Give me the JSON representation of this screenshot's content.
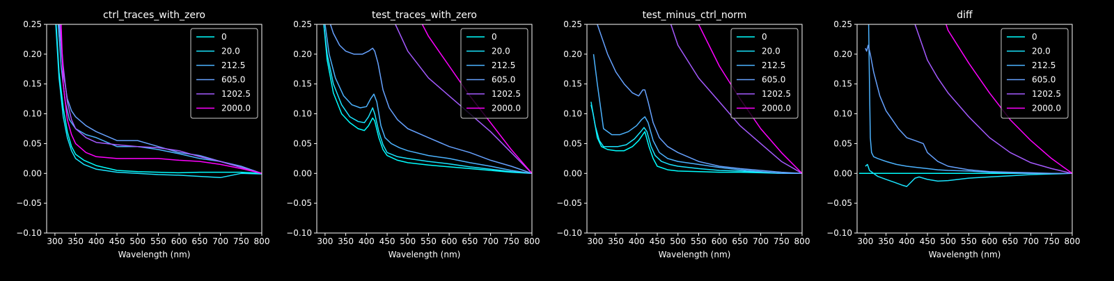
{
  "figure": {
    "background": "#000000",
    "foreground": "#ffffff"
  },
  "legend_colors": [
    "#00ffff",
    "#1ae5ff",
    "#4cb3ff",
    "#66a2ff",
    "#a55aff",
    "#ff00ff"
  ],
  "chart_data": [
    {
      "type": "line",
      "title": "ctrl_traces_with_zero",
      "xlabel": "Wavelength (nm)",
      "ylabel": "",
      "xlim": [
        280,
        800
      ],
      "ylim": [
        -0.1,
        0.25
      ],
      "xticks": [
        300,
        350,
        400,
        450,
        500,
        550,
        600,
        650,
        700,
        750,
        800
      ],
      "yticks": [
        "−0.10",
        "−0.05",
        "0.00",
        "0.05",
        "0.10",
        "0.15",
        "0.20",
        "0.25"
      ],
      "legend_position": "top-right",
      "series": [
        {
          "name": "0",
          "color": "#00ffff",
          "x": [
            303,
            310,
            320,
            330,
            340,
            350,
            370,
            400,
            450,
            500,
            550,
            600,
            650,
            700,
            750,
            800
          ],
          "y": [
            0.25,
            0.17,
            0.11,
            0.07,
            0.045,
            0.032,
            0.022,
            0.013,
            0.005,
            0.003,
            0.002,
            0.001,
            0.002,
            0.002,
            0.002,
            0.0
          ]
        },
        {
          "name": "20.0",
          "color": "#1ae5ff",
          "x": [
            302,
            310,
            320,
            330,
            340,
            350,
            370,
            400,
            450,
            500,
            550,
            600,
            650,
            700,
            750,
            800
          ],
          "y": [
            0.25,
            0.16,
            0.095,
            0.06,
            0.038,
            0.025,
            0.015,
            0.007,
            0.002,
            0.0,
            -0.002,
            -0.003,
            -0.005,
            -0.007,
            0.0,
            -0.001
          ]
        },
        {
          "name": "212.5",
          "color": "#4cb3ff",
          "x": [
            308,
            315,
            325,
            335,
            350,
            375,
            400,
            450,
            500,
            550,
            600,
            650,
            700,
            750,
            800
          ],
          "y": [
            0.25,
            0.18,
            0.12,
            0.09,
            0.075,
            0.065,
            0.06,
            0.045,
            0.045,
            0.04,
            0.033,
            0.025,
            0.02,
            0.01,
            0.0
          ]
        },
        {
          "name": "605.0",
          "color": "#66a2ff",
          "x": [
            310,
            320,
            330,
            340,
            350,
            375,
            400,
            450,
            500,
            550,
            600,
            650,
            700,
            750,
            800
          ],
          "y": [
            0.25,
            0.17,
            0.125,
            0.105,
            0.095,
            0.08,
            0.07,
            0.055,
            0.055,
            0.045,
            0.035,
            0.03,
            0.02,
            0.012,
            0.0
          ]
        },
        {
          "name": "1202.5",
          "color": "#a55aff",
          "x": [
            312,
            320,
            330,
            340,
            350,
            375,
            400,
            450,
            500,
            550,
            600,
            650,
            700,
            750,
            800
          ],
          "y": [
            0.25,
            0.18,
            0.12,
            0.09,
            0.075,
            0.06,
            0.052,
            0.048,
            0.045,
            0.043,
            0.038,
            0.028,
            0.02,
            0.01,
            0.0
          ]
        },
        {
          "name": "2000.0",
          "color": "#ff00ff",
          "x": [
            315,
            320,
            330,
            340,
            350,
            375,
            400,
            450,
            500,
            550,
            600,
            650,
            700,
            750,
            800
          ],
          "y": [
            0.25,
            0.15,
            0.09,
            0.065,
            0.05,
            0.035,
            0.028,
            0.025,
            0.025,
            0.025,
            0.022,
            0.02,
            0.015,
            0.008,
            0.0
          ]
        }
      ]
    },
    {
      "type": "line",
      "title": "test_traces_with_zero",
      "xlabel": "Wavelength (nm)",
      "ylabel": "",
      "xlim": [
        280,
        800
      ],
      "ylim": [
        -0.1,
        0.25
      ],
      "xticks": [
        300,
        350,
        400,
        450,
        500,
        550,
        600,
        650,
        700,
        750,
        800
      ],
      "yticks": [
        "−0.10",
        "−0.05",
        "0.00",
        "0.05",
        "0.10",
        "0.15",
        "0.20",
        "0.25"
      ],
      "legend_position": "top-right",
      "series": [
        {
          "name": "0",
          "color": "#00ffff",
          "x": [
            297,
            305,
            320,
            340,
            360,
            380,
            395,
            405,
            415,
            420,
            430,
            440,
            450,
            475,
            500,
            550,
            600,
            650,
            700,
            750,
            800
          ],
          "y": [
            0.25,
            0.19,
            0.135,
            0.1,
            0.085,
            0.075,
            0.072,
            0.08,
            0.093,
            0.088,
            0.06,
            0.04,
            0.03,
            0.022,
            0.018,
            0.014,
            0.011,
            0.008,
            0.005,
            0.002,
            0.0
          ]
        },
        {
          "name": "20.0",
          "color": "#1ae5ff",
          "x": [
            297,
            305,
            320,
            340,
            360,
            380,
            395,
            405,
            415,
            420,
            430,
            440,
            450,
            475,
            500,
            550,
            600,
            650,
            700,
            750,
            800
          ],
          "y": [
            0.25,
            0.2,
            0.15,
            0.115,
            0.095,
            0.087,
            0.085,
            0.095,
            0.11,
            0.1,
            0.07,
            0.048,
            0.035,
            0.028,
            0.025,
            0.02,
            0.016,
            0.011,
            0.007,
            0.003,
            0.0
          ]
        },
        {
          "name": "212.5",
          "color": "#4cb3ff",
          "x": [
            300,
            310,
            325,
            345,
            365,
            385,
            400,
            410,
            418,
            425,
            435,
            445,
            460,
            480,
            500,
            550,
            600,
            650,
            700,
            750,
            800
          ],
          "y": [
            0.25,
            0.2,
            0.16,
            0.13,
            0.115,
            0.11,
            0.112,
            0.125,
            0.133,
            0.12,
            0.08,
            0.06,
            0.05,
            0.043,
            0.038,
            0.03,
            0.025,
            0.018,
            0.012,
            0.005,
            0.0
          ]
        },
        {
          "name": "605.0",
          "color": "#66a2ff",
          "x": [
            313,
            320,
            335,
            350,
            370,
            390,
            405,
            415,
            420,
            428,
            440,
            455,
            475,
            500,
            550,
            600,
            650,
            700,
            750,
            800
          ],
          "y": [
            0.25,
            0.235,
            0.215,
            0.205,
            0.2,
            0.2,
            0.205,
            0.21,
            0.205,
            0.185,
            0.14,
            0.11,
            0.09,
            0.075,
            0.06,
            0.045,
            0.035,
            0.022,
            0.012,
            0.0
          ]
        },
        {
          "name": "1202.5",
          "color": "#a55aff",
          "x": [
            470,
            500,
            550,
            600,
            650,
            700,
            750,
            800
          ],
          "y": [
            0.25,
            0.205,
            0.16,
            0.13,
            0.1,
            0.07,
            0.035,
            0.0
          ]
        },
        {
          "name": "2000.0",
          "color": "#ff00ff",
          "x": [
            535,
            550,
            600,
            650,
            700,
            750,
            800
          ],
          "y": [
            0.25,
            0.23,
            0.18,
            0.13,
            0.085,
            0.04,
            0.0
          ]
        }
      ]
    },
    {
      "type": "line",
      "title": "test_minus_ctrl_norm",
      "xlabel": "Wavelength (nm)",
      "ylabel": "",
      "xlim": [
        280,
        800
      ],
      "ylim": [
        -0.1,
        0.25
      ],
      "xticks": [
        300,
        350,
        400,
        450,
        500,
        550,
        600,
        650,
        700,
        750,
        800
      ],
      "yticks": [
        "−0.10",
        "−0.05",
        "0.00",
        "0.05",
        "0.10",
        "0.15",
        "0.20",
        "0.25"
      ],
      "legend_position": "top-right",
      "series": [
        {
          "name": "0",
          "color": "#00ffff",
          "x": [
            290,
            295,
            305,
            315,
            330,
            350,
            370,
            390,
            405,
            415,
            420,
            430,
            440,
            450,
            475,
            500,
            550,
            600,
            650,
            700,
            750,
            800
          ],
          "y": [
            0.115,
            0.1,
            0.06,
            0.045,
            0.04,
            0.038,
            0.038,
            0.045,
            0.055,
            0.065,
            0.07,
            0.045,
            0.025,
            0.012,
            0.006,
            0.004,
            0.003,
            0.002,
            0.002,
            0.001,
            0.0,
            0.0
          ]
        },
        {
          "name": "20.0",
          "color": "#1ae5ff",
          "x": [
            290,
            300,
            310,
            320,
            335,
            355,
            375,
            395,
            410,
            418,
            425,
            435,
            445,
            460,
            480,
            500,
            550,
            600,
            650,
            700,
            750,
            800
          ],
          "y": [
            0.12,
            0.08,
            0.055,
            0.045,
            0.045,
            0.045,
            0.048,
            0.058,
            0.07,
            0.077,
            0.07,
            0.045,
            0.03,
            0.02,
            0.015,
            0.012,
            0.008,
            0.005,
            0.004,
            0.002,
            0.0,
            0.0
          ]
        },
        {
          "name": "212.5",
          "color": "#4cb3ff",
          "x": [
            296,
            305,
            320,
            340,
            360,
            380,
            400,
            412,
            420,
            428,
            440,
            455,
            475,
            500,
            550,
            600,
            650,
            700,
            750,
            800
          ],
          "y": [
            0.2,
            0.15,
            0.075,
            0.065,
            0.065,
            0.07,
            0.08,
            0.09,
            0.095,
            0.085,
            0.055,
            0.035,
            0.025,
            0.02,
            0.015,
            0.01,
            0.006,
            0.003,
            0.0,
            0.0
          ]
        },
        {
          "name": "605.0",
          "color": "#66a2ff",
          "x": [
            305,
            315,
            330,
            350,
            370,
            390,
            405,
            415,
            420,
            428,
            440,
            455,
            475,
            500,
            550,
            600,
            650,
            700,
            750,
            800
          ],
          "y": [
            0.25,
            0.23,
            0.2,
            0.17,
            0.15,
            0.135,
            0.13,
            0.14,
            0.14,
            0.12,
            0.085,
            0.06,
            0.045,
            0.035,
            0.02,
            0.012,
            0.008,
            0.005,
            0.002,
            0.0
          ]
        },
        {
          "name": "1202.5",
          "color": "#a55aff",
          "x": [
            483,
            500,
            550,
            600,
            650,
            700,
            750,
            800
          ],
          "y": [
            0.25,
            0.215,
            0.16,
            0.12,
            0.08,
            0.05,
            0.02,
            0.0
          ]
        },
        {
          "name": "2000.0",
          "color": "#ff00ff",
          "x": [
            550,
            575,
            600,
            650,
            700,
            750,
            800
          ],
          "y": [
            0.25,
            0.215,
            0.18,
            0.125,
            0.075,
            0.035,
            0.0
          ]
        }
      ]
    },
    {
      "type": "line",
      "title": "diff",
      "xlabel": "Wavelength (nm)",
      "ylabel": "",
      "xlim": [
        280,
        800
      ],
      "ylim": [
        -0.1,
        0.25
      ],
      "xticks": [
        300,
        350,
        400,
        450,
        500,
        550,
        600,
        650,
        700,
        750,
        800
      ],
      "yticks": [
        "−0.10",
        "−0.05",
        "0.00",
        "0.05",
        "0.10",
        "0.15",
        "0.20",
        "0.25"
      ],
      "legend_position": "top-right",
      "series": [
        {
          "name": "0",
          "color": "#00ffff",
          "x": [
            285,
            800
          ],
          "y": [
            0.0,
            0.0
          ]
        },
        {
          "name": "20.0",
          "color": "#1ae5ff",
          "x": [
            300,
            305,
            310,
            330,
            350,
            370,
            390,
            400,
            410,
            420,
            430,
            450,
            475,
            500,
            550,
            600,
            650,
            700,
            750,
            800
          ],
          "y": [
            0.012,
            0.015,
            0.005,
            -0.005,
            -0.01,
            -0.015,
            -0.02,
            -0.022,
            -0.015,
            -0.008,
            -0.006,
            -0.01,
            -0.013,
            -0.012,
            -0.008,
            -0.006,
            -0.004,
            -0.002,
            -0.001,
            0.0
          ]
        },
        {
          "name": "212.5",
          "color": "#4cb3ff",
          "x": [
            308,
            310,
            312,
            315,
            320,
            330,
            350,
            375,
            400,
            425,
            450,
            475,
            500,
            550,
            600,
            650,
            700,
            750,
            800
          ],
          "y": [
            0.25,
            0.15,
            0.06,
            0.035,
            0.028,
            0.025,
            0.02,
            0.015,
            0.012,
            0.01,
            0.008,
            0.006,
            0.005,
            0.004,
            0.002,
            0.001,
            0.0,
            0.0,
            0.0
          ]
        },
        {
          "name": "605.0",
          "color": "#66a2ff",
          "x": [
            300,
            303,
            307,
            312,
            320,
            335,
            350,
            365,
            380,
            400,
            420,
            440,
            450,
            475,
            500,
            550,
            600,
            650,
            700,
            750,
            800
          ],
          "y": [
            0.21,
            0.205,
            0.215,
            0.2,
            0.17,
            0.13,
            0.105,
            0.09,
            0.075,
            0.06,
            0.055,
            0.05,
            0.035,
            0.02,
            0.012,
            0.006,
            0.003,
            0.002,
            0.001,
            0.0,
            0.0
          ]
        },
        {
          "name": "1202.5",
          "color": "#a55aff",
          "x": [
            420,
            450,
            475,
            500,
            550,
            600,
            650,
            700,
            750,
            800
          ],
          "y": [
            0.25,
            0.19,
            0.16,
            0.135,
            0.095,
            0.06,
            0.035,
            0.018,
            0.008,
            0.0
          ]
        },
        {
          "name": "2000.0",
          "color": "#ff00ff",
          "x": [
            495,
            500,
            550,
            600,
            650,
            700,
            750,
            800
          ],
          "y": [
            0.25,
            0.24,
            0.185,
            0.135,
            0.09,
            0.055,
            0.025,
            0.0
          ]
        }
      ]
    }
  ]
}
